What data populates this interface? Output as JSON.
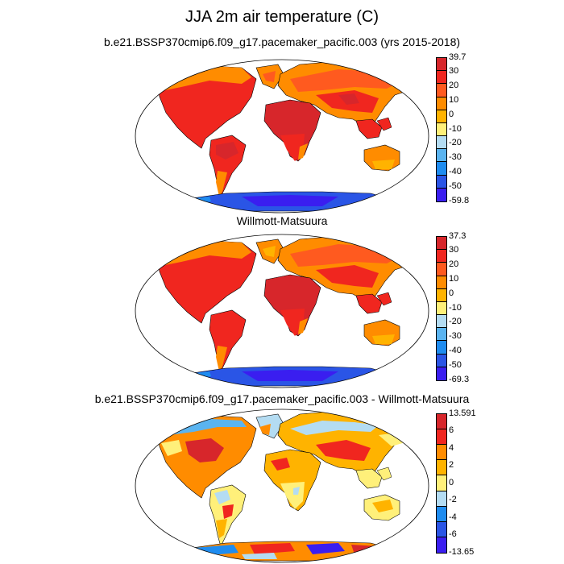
{
  "main_title": "JJA 2m air temperature (C)",
  "panels": [
    {
      "title": "b.e21.BSSP370cmip6.f09_g17.pacemaker_pacific.003 (yrs 2015-2018)",
      "colorbar": {
        "labels": [
          "39.7",
          "30",
          "20",
          "10",
          "0",
          "-10",
          "-20",
          "-30",
          "-40",
          "-50",
          "-59.8"
        ],
        "colors": [
          "#d7262b",
          "#f0261f",
          "#ff5a1f",
          "#ff8c00",
          "#ffb300",
          "#fff07a",
          "#b4dcf2",
          "#5ab4f0",
          "#1e8cf0",
          "#2a55e6",
          "#3a1ef0"
        ]
      }
    },
    {
      "title": "Willmott-Matsuura",
      "colorbar": {
        "labels": [
          "37.3",
          "30",
          "20",
          "10",
          "0",
          "-10",
          "-20",
          "-30",
          "-40",
          "-50",
          "-69.3"
        ],
        "colors": [
          "#d7262b",
          "#f0261f",
          "#ff5a1f",
          "#ff8c00",
          "#ffb300",
          "#fff07a",
          "#b4dcf2",
          "#5ab4f0",
          "#1e8cf0",
          "#2a55e6",
          "#3a1ef0"
        ]
      }
    },
    {
      "title": "b.e21.BSSP370cmip6.f09_g17.pacemaker_pacific.003 - Willmott-Matsuura",
      "colorbar": {
        "labels": [
          "13.591",
          "6",
          "4",
          "2",
          "0",
          "-2",
          "-4",
          "-6",
          "-13.65"
        ],
        "colors": [
          "#d7262b",
          "#f0261f",
          "#ff8c00",
          "#ffb300",
          "#fff07a",
          "#b4dcf2",
          "#1e8cf0",
          "#2a55e6",
          "#3a1ef0"
        ]
      }
    }
  ]
}
